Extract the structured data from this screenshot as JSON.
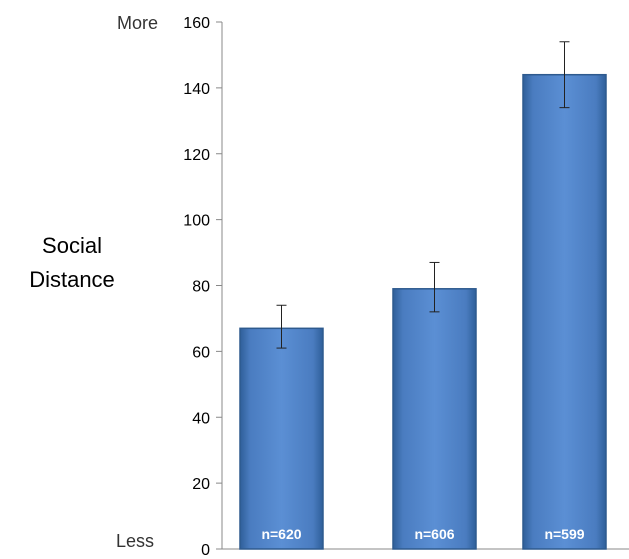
{
  "chart_data": {
    "type": "bar",
    "title": "",
    "xlabel": "",
    "ylabel": "Social Distance",
    "ylabel_lines": [
      "Social",
      "Distance"
    ],
    "y_top_label": "More",
    "y_bottom_label": "Less",
    "ylim": [
      0,
      160
    ],
    "yticks": [
      0,
      20,
      40,
      60,
      80,
      100,
      120,
      140,
      160
    ],
    "bars": [
      {
        "value": 67,
        "error_low": 61,
        "error_high": 74,
        "label": "n=620"
      },
      {
        "value": 79,
        "error_low": 72,
        "error_high": 87,
        "label": "n=606"
      },
      {
        "value": 144,
        "error_low": 134,
        "error_high": 154,
        "label": "n=599"
      }
    ],
    "bar_color": "#4f81bd",
    "bar_edge_color": "#2e5a8e",
    "grid": false,
    "legend": "none"
  }
}
